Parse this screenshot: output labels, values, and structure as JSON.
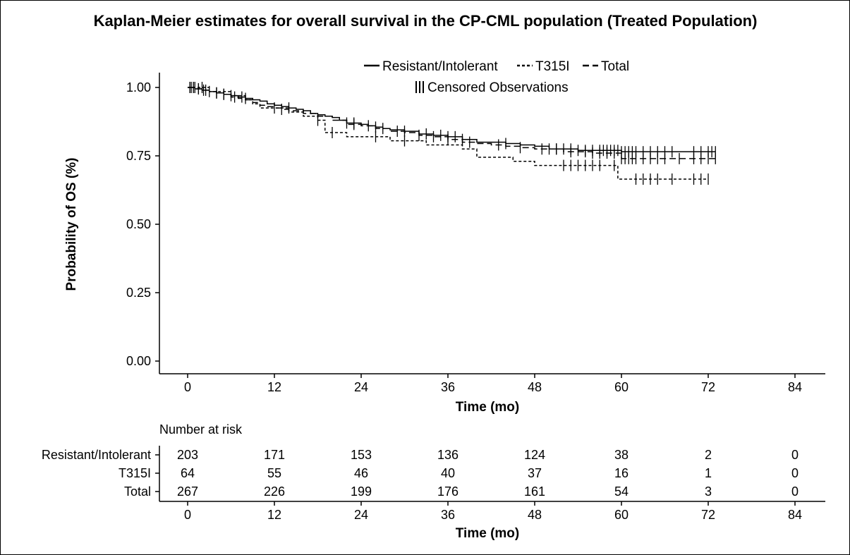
{
  "chart_data": {
    "type": "line",
    "subtype": "kaplan-meier",
    "title": "Kaplan-Meier estimates for overall survival in the CP-CML population (Treated Population)",
    "xlabel": "Time (mo)",
    "ylabel": "Probability of OS (%)",
    "xlim": [
      -3,
      88
    ],
    "ylim": [
      0,
      1.05
    ],
    "xticks": [
      0,
      12,
      24,
      36,
      48,
      60,
      72,
      84
    ],
    "xtick_labels": [
      "0",
      "12",
      "24",
      "36",
      "48",
      "60",
      "72",
      "84"
    ],
    "yticks": [
      0,
      0.25,
      0.5,
      0.75,
      1.0
    ],
    "ytick_labels": [
      "0.00",
      "0.25",
      "0.50",
      "0.75",
      "1.00"
    ],
    "grid": false,
    "legend": {
      "position": "top",
      "entries": [
        {
          "label": "Resistant/Intolerant",
          "style": "solid"
        },
        {
          "label": "T315I",
          "style": "dotted"
        },
        {
          "label": "Total",
          "style": "dashed"
        }
      ],
      "censor_label": "Censored Observations"
    },
    "series": [
      {
        "name": "Resistant/Intolerant",
        "style": "solid",
        "x": [
          0,
          1,
          2,
          3,
          4,
          5,
          6,
          7,
          8,
          9,
          10,
          11,
          12,
          13,
          14,
          15,
          16,
          17,
          18,
          19,
          20,
          21,
          22,
          24,
          25,
          26,
          27,
          28,
          30,
          32,
          34,
          36,
          38,
          40,
          42,
          44,
          46,
          48,
          50,
          54,
          60,
          73
        ],
        "y": [
          1.0,
          0.995,
          0.99,
          0.985,
          0.98,
          0.975,
          0.97,
          0.965,
          0.96,
          0.955,
          0.95,
          0.94,
          0.935,
          0.93,
          0.925,
          0.92,
          0.915,
          0.905,
          0.9,
          0.895,
          0.89,
          0.88,
          0.87,
          0.865,
          0.86,
          0.855,
          0.85,
          0.845,
          0.84,
          0.83,
          0.825,
          0.82,
          0.81,
          0.8,
          0.8,
          0.795,
          0.79,
          0.785,
          0.775,
          0.77,
          0.765,
          0.765
        ],
        "censored": [
          0.3,
          0.8,
          1.5,
          2.2,
          3,
          4,
          5,
          6,
          7.5,
          8,
          14,
          22,
          23,
          26,
          27,
          30,
          33,
          35,
          36,
          37,
          38,
          44,
          50,
          51,
          52,
          53,
          54,
          55,
          56,
          57,
          57.5,
          58,
          58.5,
          59,
          59.5,
          60,
          60.5,
          61,
          61.5,
          62,
          63,
          64,
          65,
          66,
          67,
          70,
          71,
          72,
          72.5,
          73
        ]
      },
      {
        "name": "T315I",
        "style": "dotted",
        "x": [
          0,
          3,
          6,
          8,
          9,
          10,
          14,
          16,
          18,
          19,
          22,
          28,
          33,
          38,
          40,
          45,
          48,
          59.5,
          72
        ],
        "y": [
          1.0,
          0.985,
          0.97,
          0.955,
          0.94,
          0.925,
          0.91,
          0.895,
          0.88,
          0.835,
          0.82,
          0.805,
          0.79,
          0.775,
          0.745,
          0.73,
          0.715,
          0.665,
          0.665
        ],
        "censored": [
          1,
          2,
          12,
          18,
          20,
          26,
          30,
          52,
          53,
          54,
          55,
          56,
          57,
          59,
          62,
          63,
          64,
          65,
          67,
          70,
          71,
          72
        ]
      },
      {
        "name": "Total",
        "style": "dashed",
        "x": [
          0,
          1,
          2,
          3,
          4,
          5,
          6,
          7,
          8,
          9,
          10,
          11,
          12,
          13,
          14,
          16,
          18,
          20,
          22,
          24,
          26,
          28,
          30,
          32,
          34,
          36,
          38,
          40,
          42,
          44,
          46,
          48,
          52,
          56,
          60,
          73
        ],
        "y": [
          1.0,
          0.995,
          0.99,
          0.985,
          0.98,
          0.975,
          0.965,
          0.96,
          0.955,
          0.945,
          0.935,
          0.93,
          0.925,
          0.92,
          0.915,
          0.905,
          0.895,
          0.88,
          0.865,
          0.86,
          0.85,
          0.84,
          0.835,
          0.825,
          0.82,
          0.81,
          0.8,
          0.795,
          0.79,
          0.785,
          0.78,
          0.775,
          0.765,
          0.76,
          0.74,
          0.74
        ],
        "censored": [
          0.5,
          1.5,
          2.5,
          4,
          5,
          6.5,
          13,
          23,
          25,
          29,
          32,
          34,
          36,
          39,
          43,
          46,
          49,
          51,
          53,
          55,
          56,
          57,
          58,
          59,
          60,
          60.5,
          61,
          61.5,
          62,
          63,
          64,
          65,
          66,
          68,
          70,
          71,
          72,
          73
        ]
      }
    ],
    "risk_table": {
      "title": "Number at risk",
      "xlabel": "Time (mo)",
      "times": [
        0,
        12,
        24,
        36,
        48,
        60,
        72,
        84
      ],
      "rows": [
        {
          "label": "Resistant/Intolerant",
          "values": [
            203,
            171,
            153,
            136,
            124,
            38,
            2,
            0
          ]
        },
        {
          "label": "T315I",
          "values": [
            64,
            55,
            46,
            40,
            37,
            16,
            1,
            0
          ]
        },
        {
          "label": "Total",
          "values": [
            267,
            226,
            199,
            176,
            161,
            54,
            3,
            0
          ]
        }
      ]
    }
  }
}
